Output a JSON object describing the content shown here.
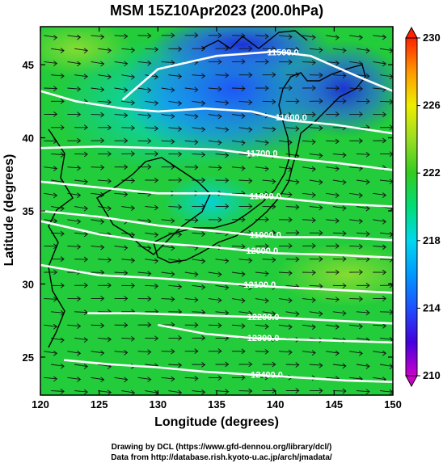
{
  "chart_data": {
    "type": "heatmap",
    "title": "MSM 15Z10Apr2023 (200.0hPa)",
    "xlabel": "Longitude (degrees)",
    "ylabel": "Latitude (degrees)",
    "xlim": [
      120,
      150
    ],
    "ylim": [
      22.4,
      47.6
    ],
    "xticks": [
      120,
      125,
      130,
      135,
      140,
      145,
      150
    ],
    "yticks": [
      25,
      30,
      35,
      40,
      45
    ],
    "colorbar": {
      "min": 210,
      "max": 230,
      "ticks": [
        210,
        214,
        218,
        222,
        226,
        230
      ],
      "colors": [
        "#cc00cc",
        "#2222ee",
        "#1e78ff",
        "#00c8ff",
        "#00dd88",
        "#22cc22",
        "#66dd22",
        "#ccee00",
        "#ffee00",
        "#ff9900",
        "#ff2200"
      ]
    },
    "contours": [
      {
        "label": "11500.0",
        "x": 139.3,
        "points": [
          [
            127,
            42.6
          ],
          [
            130,
            44.7
          ],
          [
            135,
            45.6
          ],
          [
            140,
            45.9
          ],
          [
            143,
            45.6
          ],
          [
            147,
            44.2
          ],
          [
            150,
            43.2
          ]
        ]
      },
      {
        "label": "11600.0",
        "x": 140.0,
        "points": [
          [
            120,
            43.2
          ],
          [
            123,
            42.5
          ],
          [
            127,
            42.0
          ],
          [
            130,
            41.8
          ],
          [
            134,
            42.0
          ],
          [
            138,
            41.8
          ],
          [
            141,
            41.2
          ],
          [
            145,
            40.9
          ],
          [
            150,
            40.3
          ]
        ]
      },
      {
        "label": "11700.0",
        "x": 137.5,
        "points": [
          [
            120,
            39.3
          ],
          [
            125,
            39.4
          ],
          [
            130,
            39.3
          ],
          [
            135,
            39.2
          ],
          [
            140,
            38.7
          ],
          [
            145,
            38.3
          ],
          [
            150,
            37.8
          ]
        ]
      },
      {
        "label": "11800.0",
        "x": 137.8,
        "points": [
          [
            120,
            37.0
          ],
          [
            125,
            36.6
          ],
          [
            130,
            36.2
          ],
          [
            135,
            36.2
          ],
          [
            140,
            35.9
          ],
          [
            145,
            35.5
          ],
          [
            150,
            35.3
          ]
        ]
      },
      {
        "label": "11900.0",
        "x": 137.8,
        "points": [
          [
            120,
            35.0
          ],
          [
            125,
            34.6
          ],
          [
            130,
            34.0
          ],
          [
            135,
            33.6
          ],
          [
            140,
            33.2
          ],
          [
            145,
            33.2
          ],
          [
            150,
            33.0
          ]
        ]
      },
      {
        "label": "12000.0",
        "x": 137.5,
        "points": [
          [
            120,
            34.3
          ],
          [
            125,
            33.4
          ],
          [
            130,
            32.8
          ],
          [
            135,
            32.5
          ],
          [
            140,
            32.1
          ],
          [
            145,
            32.0
          ],
          [
            150,
            31.8
          ]
        ]
      },
      {
        "label": "12100.0",
        "x": 137.3,
        "points": [
          [
            120,
            31.3
          ],
          [
            125,
            30.6
          ],
          [
            130,
            30.4
          ],
          [
            135,
            30.1
          ],
          [
            140,
            29.8
          ],
          [
            145,
            29.6
          ],
          [
            150,
            29.4
          ]
        ]
      },
      {
        "label": "12200.0",
        "x": 137.6,
        "points": [
          [
            124,
            28.0
          ],
          [
            128,
            28.0
          ],
          [
            132,
            27.9
          ],
          [
            136,
            27.8
          ],
          [
            140,
            27.7
          ],
          [
            145,
            27.5
          ],
          [
            150,
            27.3
          ]
        ]
      },
      {
        "label": "12300.0",
        "x": 137.6,
        "points": [
          [
            130,
            27.2
          ],
          [
            134,
            26.6
          ],
          [
            138,
            26.3
          ],
          [
            142,
            26.2
          ],
          [
            146,
            26.1
          ],
          [
            150,
            26.0
          ]
        ]
      },
      {
        "label": "12400.0",
        "x": 137.9,
        "points": [
          [
            122,
            24.8
          ],
          [
            126,
            24.5
          ],
          [
            130,
            24.3
          ],
          [
            134,
            24.0
          ],
          [
            138,
            23.8
          ],
          [
            142,
            23.6
          ],
          [
            146,
            23.4
          ],
          [
            150,
            23.3
          ]
        ]
      }
    ]
  },
  "credit": {
    "line1": "Drawing by DCL (https://www.gfd-dennou.org/library/dcl/)",
    "line2": "Data from http://database.rish.kyoto-u.ac.jp/arch/jmadata/"
  }
}
